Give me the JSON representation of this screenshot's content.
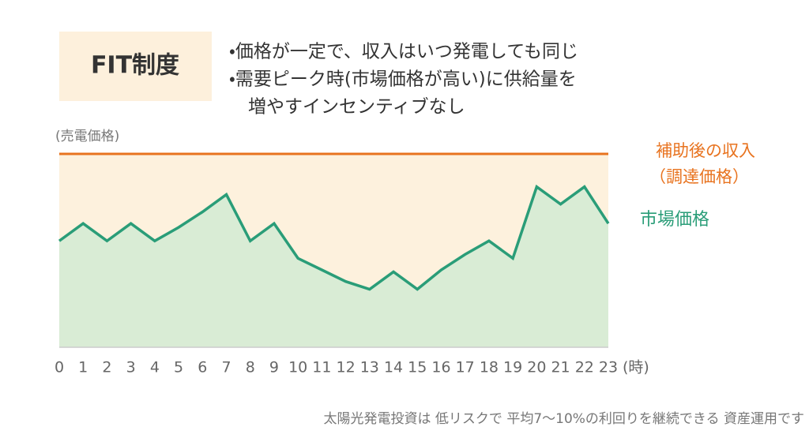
{
  "chart_data": {
    "type": "line",
    "title": "FIT制度",
    "notes": [
      "・価格が一定で、収入はいつ発電しても同じ",
      "・需要ピーク時(市場価格が高い)に供給量を",
      "増やすインセンティブなし"
    ],
    "y_label": "(売電価格)",
    "x_label": "(時)",
    "footer": "太陽光発電投資は 低リスクで 平均7〜10%の利回りを継続できる 資産運用です",
    "categories": [
      "0",
      "1",
      "2",
      "3",
      "4",
      "5",
      "6",
      "7",
      "8",
      "9",
      "10",
      "11",
      "12",
      "13",
      "14",
      "15",
      "16",
      "17",
      "18",
      "19",
      "20",
      "21",
      "22",
      "23"
    ],
    "ylim": [
      0,
      100
    ],
    "fit_price": {
      "name": "補助後の収入",
      "name_sub": "（調達価格）",
      "value": 100,
      "color": "#e8731f",
      "fill": "#fdf1dd"
    },
    "series": [
      {
        "name": "市場価格",
        "color": "#2a9d78",
        "fill": "#d9ecd5",
        "values": [
          55,
          64,
          55,
          64,
          55,
          62,
          70,
          79,
          55,
          64,
          46,
          40,
          34,
          30,
          39,
          30,
          40,
          48,
          55,
          46,
          83,
          74,
          83,
          64
        ]
      }
    ]
  }
}
